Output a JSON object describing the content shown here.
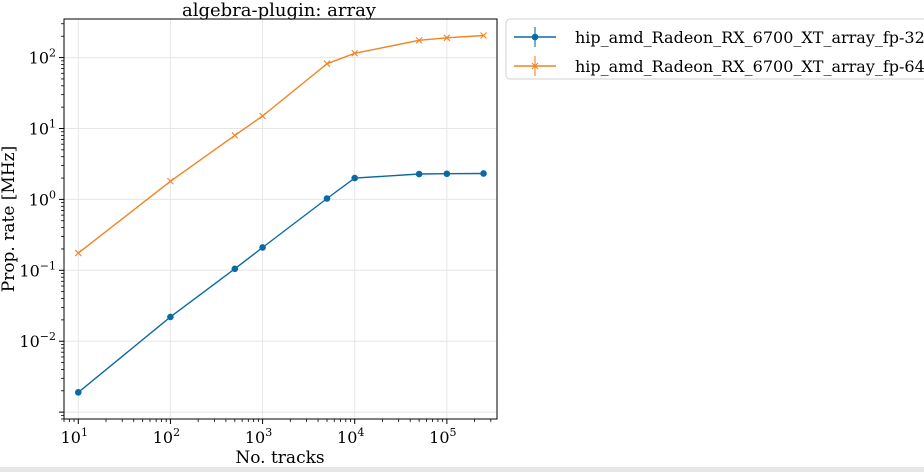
{
  "chart_data": {
    "type": "line",
    "title": "algebra-plugin: array",
    "xlabel": "No. tracks",
    "ylabel": "Prop. rate [MHz]",
    "xscale": "log",
    "yscale": "log",
    "xlim": [
      7,
      350000
    ],
    "ylim": [
      0.0008,
      350
    ],
    "grid": true,
    "legend_position": "outside-top-right",
    "x_ticks": [
      {
        "value": 10,
        "base": "10",
        "exp": "1"
      },
      {
        "value": 100,
        "base": "10",
        "exp": "2"
      },
      {
        "value": 1000,
        "base": "10",
        "exp": "3"
      },
      {
        "value": 10000,
        "base": "10",
        "exp": "4"
      },
      {
        "value": 100000,
        "base": "10",
        "exp": "5"
      }
    ],
    "y_ticks": [
      {
        "value": 0.01,
        "base": "10",
        "exp": "−2"
      },
      {
        "value": 0.1,
        "base": "10",
        "exp": "−1"
      },
      {
        "value": 1,
        "base": "10",
        "exp": "0"
      },
      {
        "value": 10,
        "base": "10",
        "exp": "1"
      },
      {
        "value": 100,
        "base": "10",
        "exp": "2"
      }
    ],
    "series": [
      {
        "name": "hip_amd_Radeon_RX_6700_XT_array_fp-32",
        "color": "#0b6aa4",
        "marker": "circle",
        "x": [
          10,
          100,
          500,
          1000,
          5000,
          10000,
          50000,
          100000,
          250000
        ],
        "y": [
          0.0019,
          0.022,
          0.105,
          0.21,
          1.03,
          2.0,
          2.28,
          2.3,
          2.32
        ]
      },
      {
        "name": "hip_amd_Radeon_RX_6700_XT_array_fp-64",
        "color": "#f5821f",
        "marker": "x",
        "x": [
          10,
          100,
          500,
          1000,
          5000,
          10000,
          50000,
          100000,
          250000
        ],
        "y": [
          0.175,
          1.8,
          8.0,
          15.0,
          82,
          115,
          175,
          190,
          205
        ]
      }
    ]
  }
}
